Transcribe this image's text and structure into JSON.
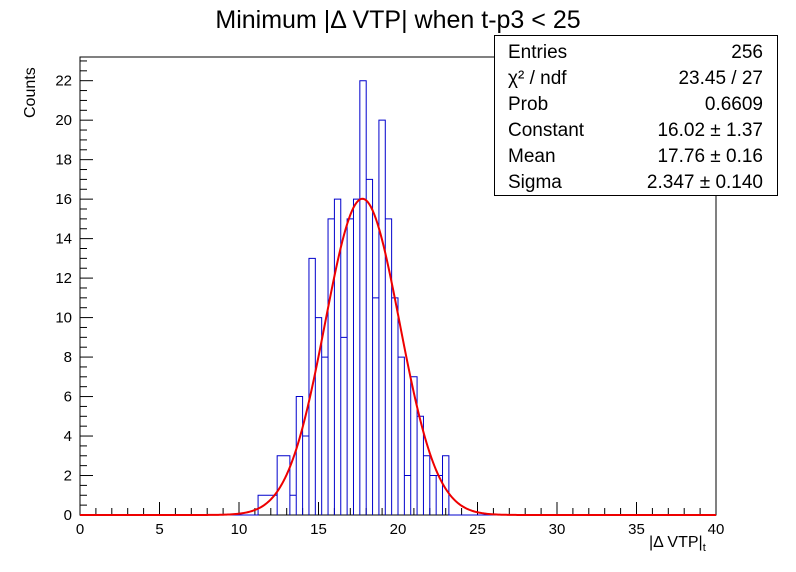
{
  "chart_data": {
    "type": "histogram",
    "title": "Minimum |Δ VTP| when t-p3 < 25",
    "xlabel": "|Δ VTP|",
    "xlabel_sub": "t",
    "ylabel": "Counts",
    "xlim": [
      0,
      40
    ],
    "ylim": [
      0,
      23.2
    ],
    "x_ticks": [
      0,
      5,
      10,
      15,
      20,
      25,
      30,
      35,
      40
    ],
    "y_ticks": [
      0,
      2,
      4,
      6,
      8,
      10,
      12,
      14,
      16,
      18,
      20,
      22
    ],
    "bin_width": 0.4,
    "bins_start": [
      11.2,
      12.4,
      13.2,
      13.6,
      14.0,
      14.4,
      14.8,
      15.2,
      15.6,
      16.0,
      16.4,
      16.8,
      17.2,
      17.6,
      18.0,
      18.4,
      18.8,
      19.2,
      19.6,
      20.0,
      20.4,
      20.8,
      21.2,
      21.6,
      22.0,
      22.4,
      22.8
    ],
    "bins_width": [
      1.2,
      0.8,
      0.4,
      0.4,
      0.4,
      0.4,
      0.4,
      0.4,
      0.4,
      0.4,
      0.4,
      0.4,
      0.4,
      0.4,
      0.4,
      0.4,
      0.4,
      0.4,
      0.4,
      0.4,
      0.4,
      0.4,
      0.4,
      0.4,
      0.4,
      0.4,
      0.4
    ],
    "bins_count": [
      1,
      3,
      1,
      6,
      4,
      13,
      10,
      8,
      15,
      16,
      9,
      15,
      16,
      22,
      17,
      11,
      20,
      15,
      11,
      8,
      2,
      7,
      5,
      3,
      2,
      2,
      3
    ],
    "fit": {
      "function": "gaus",
      "constant": 16.02,
      "mean": 17.76,
      "sigma": 2.347
    },
    "histogram_color": "#0000cc",
    "fit_color": "#ee0000",
    "stats": [
      {
        "label": "Entries",
        "value": "256"
      },
      {
        "label": "χ² / ndf",
        "value": "23.45 / 27"
      },
      {
        "label": "Prob",
        "value": "0.6609"
      },
      {
        "label": "Constant",
        "value": "16.02 ± 1.37"
      },
      {
        "label": "Mean",
        "value": "17.76 ± 0.16"
      },
      {
        "label": "Sigma",
        "value": "2.347 ± 0.140"
      }
    ]
  }
}
